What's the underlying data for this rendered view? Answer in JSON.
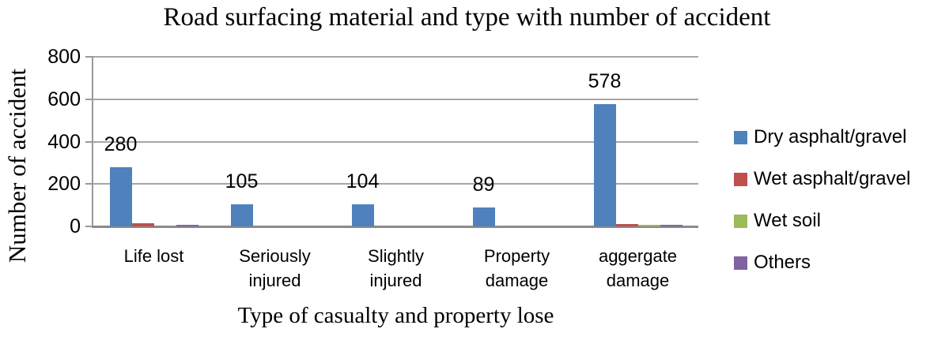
{
  "chart_data": {
    "type": "bar",
    "title": "Road surfacing material and type with number of accident",
    "xlabel": "Type of casualty and property lose",
    "ylabel": "Number of accident",
    "categories": [
      "Life lost",
      "Seriously injured",
      "Slightly injured",
      "Property damage",
      "aggergate damage"
    ],
    "series": [
      {
        "name": "Dry asphalt/gravel",
        "color": "#4f81bd",
        "values": [
          280,
          105,
          104,
          89,
          578
        ]
      },
      {
        "name": "Wet asphalt/gravel",
        "color": "#c0504d",
        "values": [
          15,
          0,
          0,
          0,
          13
        ]
      },
      {
        "name": "Wet soil",
        "color": "#9bbb59",
        "values": [
          0,
          0,
          0,
          0,
          5
        ]
      },
      {
        "name": "Others",
        "color": "#8064a2",
        "values": [
          5,
          0,
          0,
          0,
          5
        ]
      }
    ],
    "data_labels": [
      "280",
      "105",
      "104",
      "89",
      "578"
    ],
    "data_labels_series": "Dry asphalt/gravel",
    "ylim": [
      0,
      800
    ],
    "yticks": [
      0,
      200,
      400,
      600,
      800
    ],
    "grid": "horizontal",
    "legend_position": "right",
    "colors": {
      "gridline": "#a6a6a6",
      "axis": "#8a8a8a",
      "background": "#ffffff",
      "text": "#000000"
    }
  }
}
